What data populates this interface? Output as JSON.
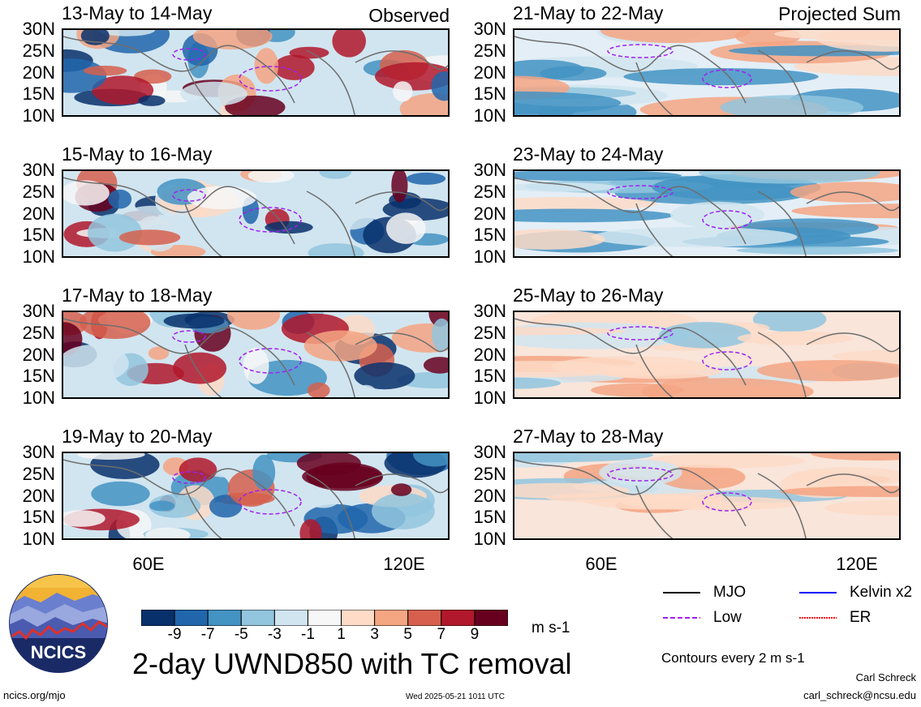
{
  "header": {
    "left_label": "Observed",
    "right_label": "Projected Sum"
  },
  "panels_left": [
    {
      "title": "13-May to 14-May"
    },
    {
      "title": "15-May to 16-May"
    },
    {
      "title": "17-May to 18-May"
    },
    {
      "title": "19-May to 20-May"
    }
  ],
  "panels_right": [
    {
      "title": "21-May to 22-May"
    },
    {
      "title": "23-May to 24-May"
    },
    {
      "title": "25-May to 26-May"
    },
    {
      "title": "27-May to 28-May"
    }
  ],
  "lat_labels": [
    "30N",
    "25N",
    "20N",
    "15N",
    "10N"
  ],
  "lon_labels": [
    "60E",
    "120E"
  ],
  "colorbar": {
    "ticks": [
      "-9",
      "-7",
      "-5",
      "-3",
      "-1",
      "1",
      "3",
      "5",
      "7",
      "9"
    ],
    "colors": [
      "#08306b",
      "#2166ac",
      "#4393c3",
      "#92c5de",
      "#d1e5f0",
      "#f7f7f7",
      "#fddbc7",
      "#f4a582",
      "#d6604d",
      "#b2182b",
      "#67001f"
    ],
    "units": "m s-1"
  },
  "main_title": "2-day UWND850 with TC removal",
  "logo": {
    "text": "NCICS"
  },
  "legend": {
    "items": [
      {
        "label": "MJO",
        "color": "#000000",
        "dashed": false
      },
      {
        "label": "Kelvin x2",
        "color": "#0000ff",
        "dashed": false
      },
      {
        "label": "Low",
        "color": "#a020f0",
        "dashed": true
      },
      {
        "label": "ER",
        "color": "#ff0000",
        "dashed": false
      }
    ],
    "contours_note": "Contours every 2 m s-1"
  },
  "footer": {
    "left": "ncics.org/mjo",
    "center": "Wed 2025-05-21 1011 UTC",
    "author": "Carl Schreck",
    "email": "carl_schreck@ncsu.edu"
  }
}
